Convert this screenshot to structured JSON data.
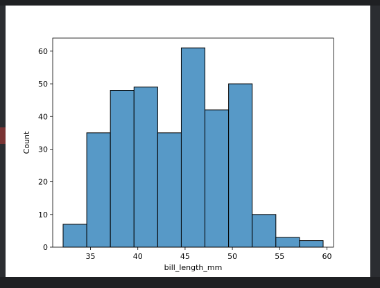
{
  "colors": {
    "bar_fill": "#5799c7",
    "bar_edge": "#000000",
    "background": "#ffffff",
    "frame": "#2b2d31"
  },
  "chart_data": {
    "type": "bar",
    "title": "",
    "xlabel": "bill_length_mm",
    "ylabel": "Count",
    "bin_edges": [
      32.1,
      34.6,
      37.1,
      39.6,
      42.1,
      44.6,
      47.1,
      49.6,
      52.1,
      54.6,
      57.1,
      59.6
    ],
    "values": [
      7,
      35,
      48,
      49,
      35,
      61,
      42,
      50,
      10,
      3,
      2
    ],
    "xlim": [
      31.0,
      60.7
    ],
    "ylim": [
      0,
      64
    ],
    "xticks": [
      35,
      40,
      45,
      50,
      55,
      60
    ],
    "yticks": [
      0,
      10,
      20,
      30,
      40,
      50,
      60
    ],
    "grid": false
  }
}
